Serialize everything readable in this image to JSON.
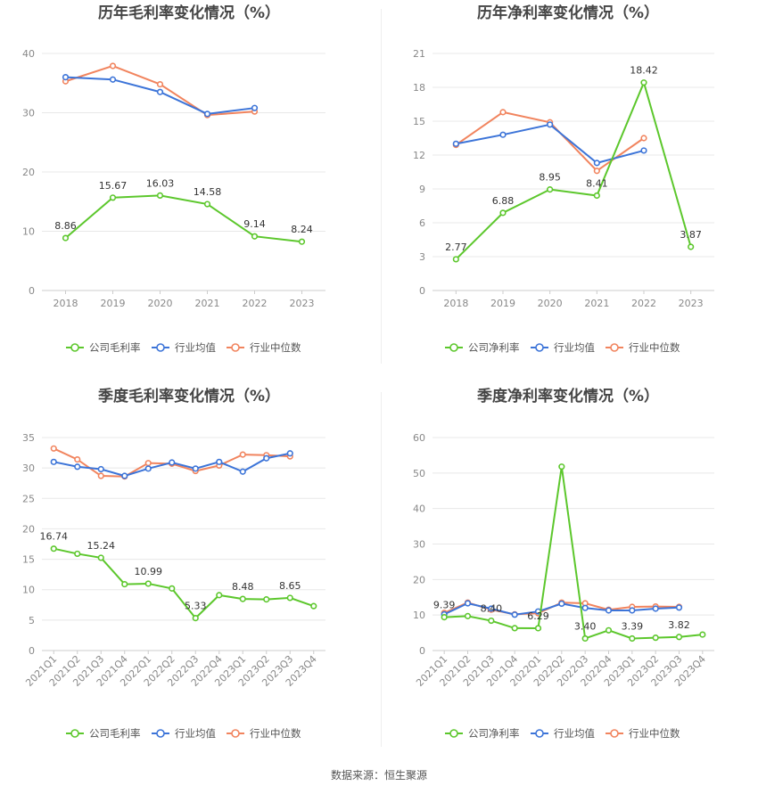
{
  "colors": {
    "company": "#5cc72c",
    "avg": "#3c74d8",
    "median": "#f1845e",
    "grid": "#e8e8e8",
    "axis": "#cccccc"
  },
  "source": "数据来源：恒生聚源",
  "charts": [
    {
      "type": "line",
      "title": "历年毛利率变化情况（%）",
      "categories": [
        "2018",
        "2019",
        "2020",
        "2021",
        "2022",
        "2023"
      ],
      "ylim": [
        0,
        40
      ],
      "yticks": [
        0,
        10,
        20,
        30,
        40
      ],
      "series": [
        {
          "name": "公司毛利率",
          "color": "#5cc72c",
          "values": [
            8.86,
            15.67,
            16.03,
            14.58,
            9.14,
            8.24
          ],
          "labels": [
            "8.86",
            "15.67",
            "16.03",
            "14.58",
            "9.14",
            "8.24"
          ]
        },
        {
          "name": "行业均值",
          "color": "#3c74d8",
          "values": [
            36.0,
            35.6,
            33.5,
            29.8,
            30.8,
            null
          ],
          "labels": []
        },
        {
          "name": "行业中位数",
          "color": "#f1845e",
          "values": [
            35.3,
            37.9,
            34.8,
            29.6,
            30.2,
            null
          ],
          "labels": []
        }
      ]
    },
    {
      "type": "line",
      "title": "历年净利率变化情况（%）",
      "categories": [
        "2018",
        "2019",
        "2020",
        "2021",
        "2022",
        "2023"
      ],
      "ylim": [
        0,
        21
      ],
      "yticks": [
        0,
        3,
        6,
        9,
        12,
        15,
        18,
        21
      ],
      "series": [
        {
          "name": "公司净利率",
          "color": "#5cc72c",
          "values": [
            2.77,
            6.88,
            8.95,
            8.41,
            18.42,
            3.87
          ],
          "labels": [
            "2.77",
            "6.88",
            "8.95",
            "8.41",
            "18.42",
            "3.87"
          ]
        },
        {
          "name": "行业均值",
          "color": "#3c74d8",
          "values": [
            13.0,
            13.8,
            14.7,
            11.3,
            12.4,
            null
          ],
          "labels": []
        },
        {
          "name": "行业中位数",
          "color": "#f1845e",
          "values": [
            12.9,
            15.8,
            14.9,
            10.6,
            13.5,
            null
          ],
          "labels": []
        }
      ]
    },
    {
      "type": "line",
      "title": "季度毛利率变化情况（%）",
      "categories": [
        "2021Q1",
        "2021Q2",
        "2021Q3",
        "2021Q4",
        "2022Q1",
        "2022Q2",
        "2022Q3",
        "2022Q4",
        "2023Q1",
        "2023Q2",
        "2023Q3",
        "2023Q4"
      ],
      "ylim": [
        0,
        35
      ],
      "yticks": [
        0,
        5,
        10,
        15,
        20,
        25,
        30,
        35
      ],
      "series": [
        {
          "name": "公司毛利率",
          "color": "#5cc72c",
          "values": [
            16.74,
            15.9,
            15.24,
            10.9,
            10.99,
            10.2,
            5.33,
            9.1,
            8.48,
            8.4,
            8.65,
            7.3
          ],
          "labels": [
            "16.74",
            "",
            "15.24",
            "",
            "10.99",
            "",
            "5.33",
            "",
            "8.48",
            "",
            "8.65",
            ""
          ]
        },
        {
          "name": "行业均值",
          "color": "#3c74d8",
          "values": [
            31.0,
            30.2,
            29.8,
            28.7,
            29.9,
            30.9,
            29.9,
            31.0,
            29.4,
            31.6,
            32.4,
            null
          ],
          "labels": []
        },
        {
          "name": "行业中位数",
          "color": "#f1845e",
          "values": [
            33.2,
            31.4,
            28.7,
            28.6,
            30.8,
            30.7,
            29.5,
            30.4,
            32.2,
            32.1,
            31.9,
            null
          ],
          "labels": []
        }
      ]
    },
    {
      "type": "line",
      "title": "季度净利率变化情况（%）",
      "categories": [
        "2021Q1",
        "2021Q2",
        "2021Q3",
        "2021Q4",
        "2022Q1",
        "2022Q2",
        "2022Q3",
        "2022Q4",
        "2023Q1",
        "2023Q2",
        "2023Q3",
        "2023Q4"
      ],
      "ylim": [
        0,
        60
      ],
      "yticks": [
        0,
        10,
        20,
        30,
        40,
        50,
        60
      ],
      "series": [
        {
          "name": "公司净利率",
          "color": "#5cc72c",
          "values": [
            9.39,
            9.7,
            8.4,
            6.3,
            6.29,
            51.8,
            3.4,
            5.7,
            3.39,
            3.6,
            3.82,
            4.5
          ],
          "labels": [
            "9.39",
            "",
            "8.40",
            "",
            "6.29",
            "",
            "3.40",
            "",
            "3.39",
            "",
            "3.82",
            ""
          ]
        },
        {
          "name": "行业均值",
          "color": "#3c74d8",
          "values": [
            10.2,
            13.3,
            11.8,
            10.1,
            11.0,
            13.2,
            12.0,
            11.3,
            11.3,
            11.8,
            12.1,
            null
          ],
          "labels": []
        },
        {
          "name": "行业中位数",
          "color": "#f1845e",
          "values": [
            10.6,
            13.5,
            11.5,
            10.2,
            10.5,
            13.5,
            13.3,
            11.5,
            12.3,
            12.4,
            12.3,
            null
          ],
          "labels": []
        }
      ]
    }
  ]
}
